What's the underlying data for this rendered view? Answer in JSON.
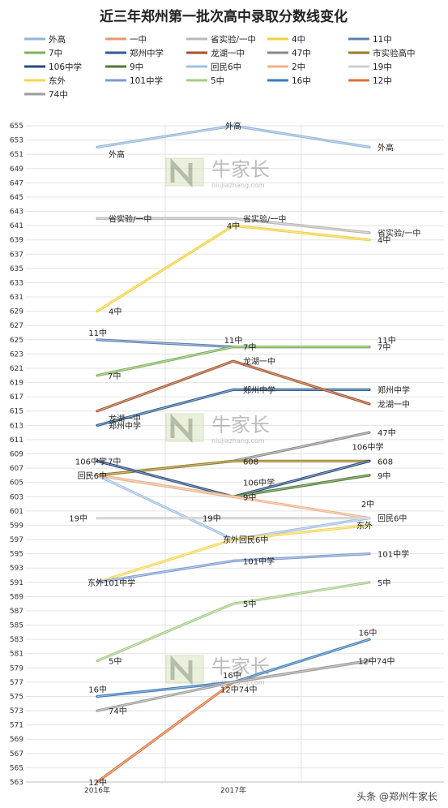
{
  "chart_data": {
    "type": "line",
    "title": "近三年郑州第一批次高中录取分数线变化",
    "categories": [
      "2016年",
      "2017年",
      ""
    ],
    "ylim": [
      563,
      655
    ],
    "ystep": 2,
    "grid": true,
    "legend": "top",
    "series": [
      {
        "name": "外高",
        "values": [
          652,
          655,
          652
        ],
        "color": "#8fb6d8"
      },
      {
        "name": "一中",
        "values": [
          642,
          642,
          640
        ],
        "color": "#e59a6c"
      },
      {
        "name": "省实验/一中",
        "values": [
          642,
          642,
          640
        ],
        "color": "#b9b9b9"
      },
      {
        "name": "4中",
        "values": [
          629,
          641,
          639
        ],
        "color": "#f3cf3a"
      },
      {
        "name": "11中",
        "values": [
          625,
          624,
          624
        ],
        "color": "#5b7fb3"
      },
      {
        "name": "7中",
        "values": [
          620,
          624,
          624
        ],
        "color": "#7fb15a"
      },
      {
        "name": "郑州中学",
        "values": [
          613,
          618,
          618
        ],
        "color": "#2f5f95"
      },
      {
        "name": "龙湖一中",
        "values": [
          615,
          622,
          616
        ],
        "color": "#a6532b"
      },
      {
        "name": "47中",
        "values": [
          606,
          608,
          612
        ],
        "color": "#8a8a8a"
      },
      {
        "name": "市实验高中",
        "values": [
          606,
          608,
          608
        ],
        "color": "#9a7d22"
      },
      {
        "name": "106中学",
        "values": [
          608,
          603,
          608
        ],
        "color": "#284a7a"
      },
      {
        "name": "9中",
        "values": [
          606,
          603,
          606
        ],
        "color": "#4f7a33"
      },
      {
        "name": "回民6中",
        "values": [
          606,
          597,
          600
        ],
        "color": "#9ec0e4"
      },
      {
        "name": "2中",
        "values": [
          606,
          603,
          600
        ],
        "color": "#f0b28b"
      },
      {
        "name": "19中",
        "values": [
          600,
          600,
          600
        ],
        "color": "#cfcfcf"
      },
      {
        "name": "东外",
        "values": [
          591,
          597,
          599
        ],
        "color": "#f7d556"
      },
      {
        "name": "101中学",
        "values": [
          591,
          594,
          595
        ],
        "color": "#7b9bd0"
      },
      {
        "name": "5中",
        "values": [
          580,
          588,
          591
        ],
        "color": "#a3cc86"
      },
      {
        "name": "16中",
        "values": [
          575,
          577,
          583
        ],
        "color": "#3d7ab8"
      },
      {
        "name": "12中",
        "values": [
          563,
          577,
          580
        ],
        "color": "#d9713b"
      },
      {
        "name": "74中",
        "values": [
          573,
          577,
          580
        ],
        "color": "#9c9c9c"
      }
    ],
    "data_labels": [
      {
        "text": "外高",
        "x": 0,
        "y": 651
      },
      {
        "text": "外高",
        "x": 1,
        "y": 655
      },
      {
        "text": "外高",
        "x": 2,
        "y": 652
      },
      {
        "text": "省实验/一中",
        "x": 0,
        "y": 642
      },
      {
        "text": "省实验/一中",
        "x": 1,
        "y": 642
      },
      {
        "text": "省实验/一中",
        "x": 2,
        "y": 640
      },
      {
        "text": "4中",
        "x": 1,
        "y": 641
      },
      {
        "text": "4中",
        "x": 2,
        "y": 639
      },
      {
        "text": "4中",
        "x": 0,
        "y": 629
      },
      {
        "text": "11中",
        "x": 0,
        "y": 626
      },
      {
        "text": "11中",
        "x": 1,
        "y": 625
      },
      {
        "text": "11中",
        "x": 2,
        "y": 625
      },
      {
        "text": "7中",
        "x": 1,
        "y": 624
      },
      {
        "text": "7中",
        "x": 2,
        "y": 624
      },
      {
        "text": "7中",
        "x": 0,
        "y": 620
      },
      {
        "text": "龙湖一中",
        "x": 1,
        "y": 622
      },
      {
        "text": "郑州中学",
        "x": 2,
        "y": 618
      },
      {
        "text": "郑州中学",
        "x": 1,
        "y": 618
      },
      {
        "text": "龙湖一中",
        "x": 2,
        "y": 616
      },
      {
        "text": "龙湖一中",
        "x": 0,
        "y": 614
      },
      {
        "text": "郑州中学",
        "x": 0,
        "y": 613
      },
      {
        "text": "47中",
        "x": 2,
        "y": 612
      },
      {
        "text": "106中学",
        "x": 2,
        "y": 610
      },
      {
        "text": "106中学",
        "x": 0,
        "y": 608
      },
      {
        "text": "7中",
        "x": 0,
        "y": 608
      },
      {
        "text": "608",
        "x": 1,
        "y": 608
      },
      {
        "text": "608",
        "x": 2,
        "y": 608
      },
      {
        "text": "回民6中",
        "x": 0,
        "y": 606
      },
      {
        "text": "9中",
        "x": 2,
        "y": 606
      },
      {
        "text": "106中学",
        "x": 1,
        "y": 605
      },
      {
        "text": "9中",
        "x": 1,
        "y": 603
      },
      {
        "text": "2中",
        "x": 2,
        "y": 602
      },
      {
        "text": "19中",
        "x": 0,
        "y": 600
      },
      {
        "text": "19中",
        "x": 1,
        "y": 600
      },
      {
        "text": "回民6中",
        "x": 2,
        "y": 600
      },
      {
        "text": "东外",
        "x": 2,
        "y": 599
      },
      {
        "text": "东外回民6中",
        "x": 1,
        "y": 597
      },
      {
        "text": "101中学",
        "x": 2,
        "y": 595
      },
      {
        "text": "101中学",
        "x": 1,
        "y": 594
      },
      {
        "text": "东外101中学",
        "x": 0,
        "y": 591
      },
      {
        "text": "5中",
        "x": 2,
        "y": 591
      },
      {
        "text": "5中",
        "x": 1,
        "y": 588
      },
      {
        "text": "16中",
        "x": 2,
        "y": 584
      },
      {
        "text": "5中",
        "x": 0,
        "y": 580
      },
      {
        "text": "12中74中",
        "x": 2,
        "y": 580
      },
      {
        "text": "16中",
        "x": 1,
        "y": 578
      },
      {
        "text": "16中",
        "x": 0,
        "y": 576
      },
      {
        "text": "12中74中",
        "x": 1,
        "y": 576
      },
      {
        "text": "74中",
        "x": 0,
        "y": 573
      },
      {
        "text": "12中",
        "x": 0,
        "y": 563
      }
    ]
  },
  "watermark": {
    "name": "牛家长",
    "site": "niujiazhang.com"
  },
  "credit": "头条 @郑州牛家长"
}
